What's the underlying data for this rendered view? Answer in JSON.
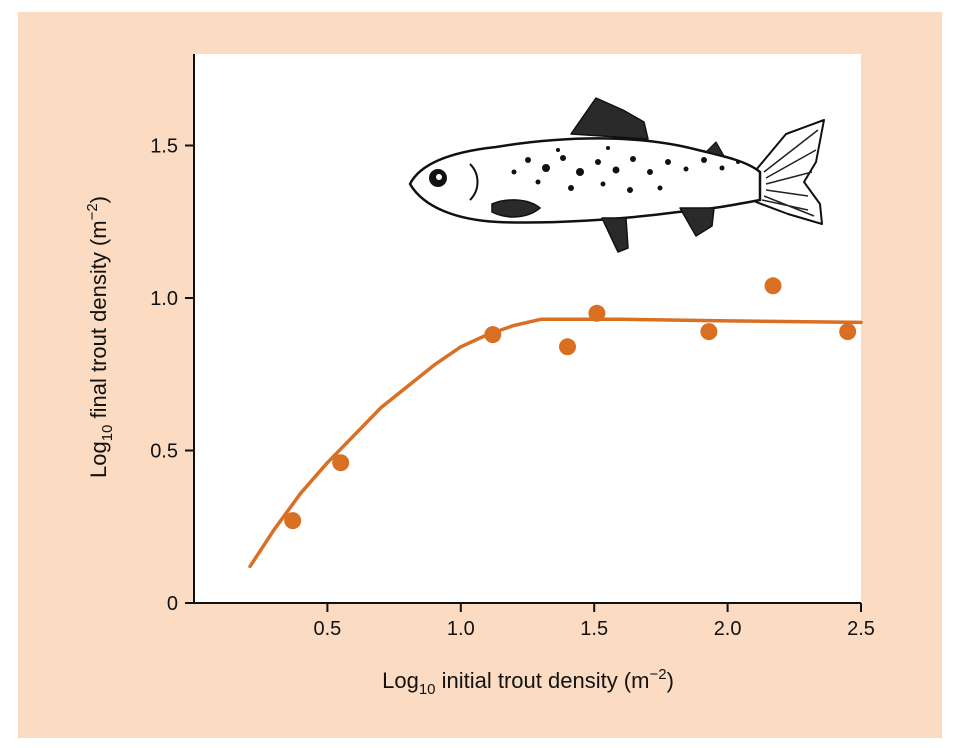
{
  "chart_data": {
    "type": "scatter",
    "xlabel": {
      "base": "Log",
      "base_sub": "10",
      "text": " initial trout density (m",
      "exp": "−2",
      "close": ")"
    },
    "ylabel": {
      "base": "Log",
      "base_sub": "10",
      "text": " final trout density (m",
      "exp": "−2",
      "close": ")"
    },
    "xlim": [
      0.0,
      2.5
    ],
    "ylim": [
      0.0,
      1.8
    ],
    "x_ticks": [
      0.5,
      1.0,
      1.5,
      2.0,
      2.5
    ],
    "x_tick_labels": [
      "0.5",
      "1.0",
      "1.5",
      "2.0",
      "2.5"
    ],
    "y_ticks": [
      0,
      0.5,
      1.0,
      1.5
    ],
    "y_tick_labels": [
      "0",
      "0.5",
      "1.0",
      "1.5"
    ],
    "grid": false,
    "series": [
      {
        "type": "scatter",
        "x": [
          0.37,
          0.55,
          1.12,
          1.4,
          1.51,
          1.93,
          2.17,
          2.45
        ],
        "y": [
          0.27,
          0.46,
          0.88,
          0.84,
          0.95,
          0.89,
          1.04,
          0.89
        ]
      },
      {
        "type": "line",
        "x": [
          0.21,
          0.3,
          0.4,
          0.5,
          0.6,
          0.7,
          0.8,
          0.9,
          1.0,
          1.1,
          1.2,
          1.3,
          1.4,
          1.6,
          2.0,
          2.5
        ],
        "y": [
          0.12,
          0.24,
          0.36,
          0.46,
          0.55,
          0.64,
          0.71,
          0.78,
          0.84,
          0.88,
          0.91,
          0.93,
          0.93,
          0.93,
          0.925,
          0.92
        ]
      }
    ],
    "colors": {
      "data": "#d96f22",
      "axis": "#111111",
      "plot_bg": "#ffffff",
      "figure_bg": "#fbdcc3"
    }
  },
  "illustration": {
    "icon": "trout-fish-icon"
  }
}
